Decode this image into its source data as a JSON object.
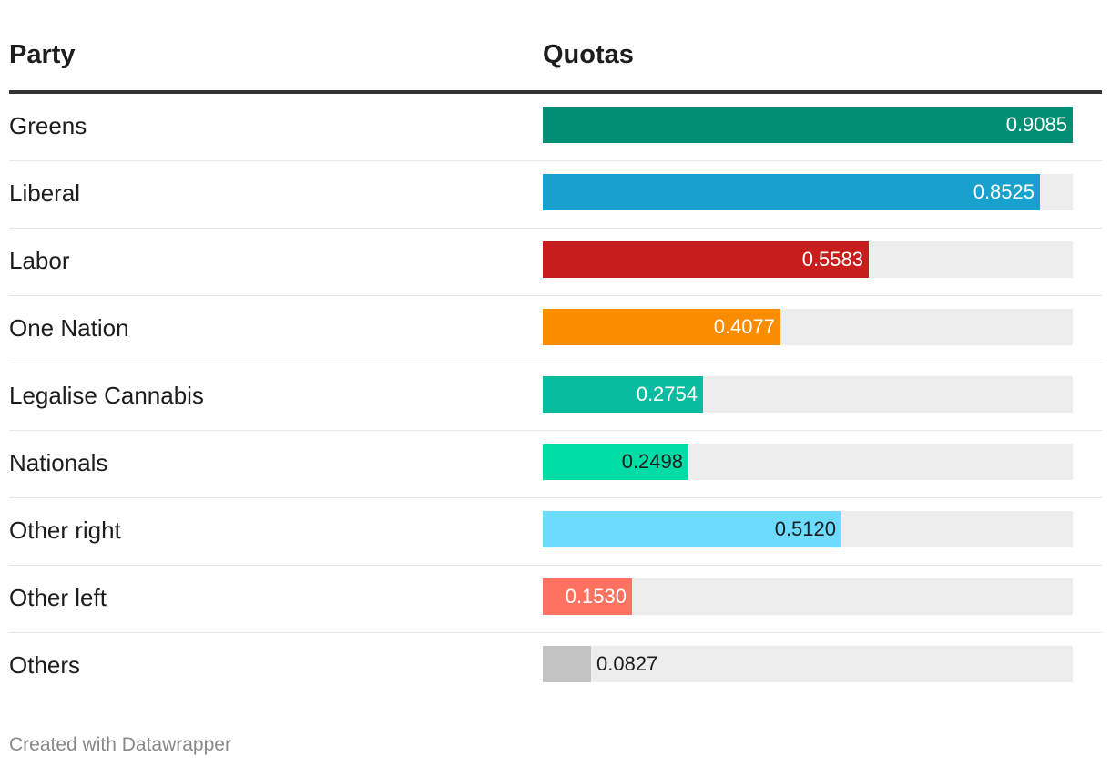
{
  "table": {
    "col_party": "Party",
    "col_quotas": "Quotas"
  },
  "footer": "Created with Datawrapper",
  "chart_data": {
    "type": "bar",
    "orientation": "horizontal",
    "xlim": [
      0,
      0.9085
    ],
    "categories": [
      "Greens",
      "Liberal",
      "Labor",
      "One Nation",
      "Legalise Cannabis",
      "Nationals",
      "Other right",
      "Other left",
      "Others"
    ],
    "values": [
      0.9085,
      0.8525,
      0.5583,
      0.4077,
      0.2754,
      0.2498,
      0.512,
      0.153,
      0.0827
    ],
    "labels": [
      "0.9085",
      "0.8525",
      "0.5583",
      "0.4077",
      "0.2754",
      "0.2498",
      "0.5120",
      "0.1530",
      "0.0827"
    ],
    "colors": [
      "#008f75",
      "#18a1cd",
      "#c71e1d",
      "#fa8c00",
      "#09bb9f",
      "#00dca6",
      "#6cdbfd",
      "#ff7261",
      "#c4c4c4"
    ],
    "label_colors": [
      "#ffffff",
      "#ffffff",
      "#ffffff",
      "#ffffff",
      "#ffffff",
      "#1d1d1d",
      "#1d1d1d",
      "#ffffff",
      "#1d1d1d"
    ]
  }
}
